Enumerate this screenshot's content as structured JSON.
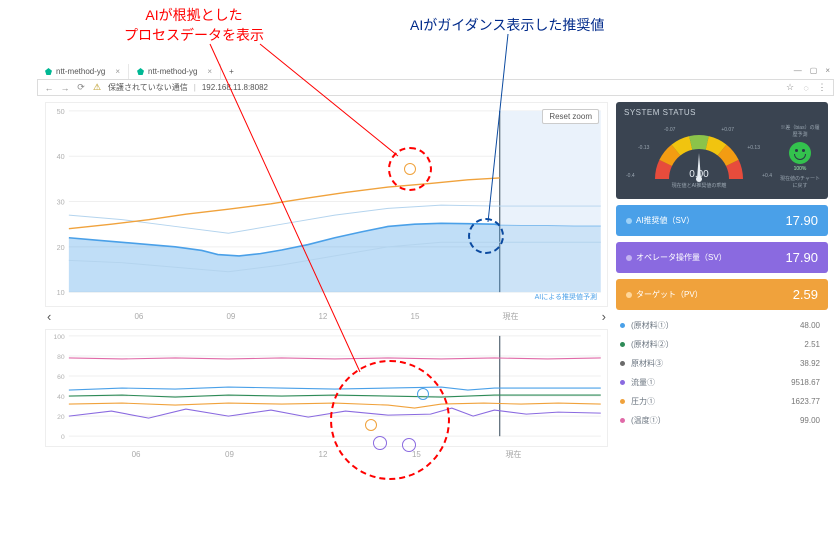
{
  "annotations": {
    "left_label_l1": "AIが根拠とした",
    "left_label_l2": "プロセスデータを表示",
    "right_label": "AIがガイダンス表示した推奨値",
    "colors": {
      "red": "#ff0000",
      "blue": "#002a8a"
    }
  },
  "browser": {
    "tabs": [
      {
        "title": "ntt-method-yg"
      },
      {
        "title": "ntt-method-yg"
      }
    ],
    "url_security": "保護されていない通信",
    "url": "192.168.11.8:8082"
  },
  "top_chart": {
    "type": "line+area",
    "reset_label": "Reset zoom",
    "y_ticks": [
      10,
      20,
      30,
      40,
      50
    ],
    "x_ticks": [
      "06",
      "09",
      "12",
      "15",
      "現在"
    ],
    "legend": "AIによる推奨値予測",
    "series": {
      "mv_area": {
        "color": "#4aa0e8",
        "fill_opacity": 0.35,
        "points": [
          [
            0,
            22
          ],
          [
            0.05,
            21.5
          ],
          [
            0.1,
            21
          ],
          [
            0.15,
            20.5
          ],
          [
            0.2,
            20
          ],
          [
            0.25,
            19.2
          ],
          [
            0.28,
            18.3
          ],
          [
            0.32,
            18.0
          ],
          [
            0.36,
            18.5
          ],
          [
            0.4,
            19.3
          ],
          [
            0.45,
            20.5
          ],
          [
            0.5,
            22.0
          ],
          [
            0.55,
            23.3
          ],
          [
            0.6,
            24.5
          ],
          [
            0.65,
            25.0
          ],
          [
            0.7,
            25.2
          ],
          [
            0.75,
            25.1
          ],
          [
            0.8,
            25.0
          ],
          [
            0.81,
            24.8
          ]
        ]
      },
      "mv_future_area": {
        "color": "#4aa0e8",
        "fill_opacity": 0.18,
        "points": [
          [
            0.81,
            24.8
          ],
          [
            0.85,
            24.7
          ],
          [
            0.9,
            24.7
          ],
          [
            0.95,
            24.6
          ],
          [
            1.0,
            24.6
          ]
        ]
      },
      "mv_ghost_upper": {
        "color": "#b4d4ee",
        "points": [
          [
            0,
            27
          ],
          [
            0.1,
            26
          ],
          [
            0.2,
            24.5
          ],
          [
            0.3,
            23
          ],
          [
            0.4,
            25
          ],
          [
            0.5,
            27
          ],
          [
            0.6,
            28.5
          ],
          [
            0.7,
            29.2
          ],
          [
            0.8,
            29.0
          ],
          [
            0.9,
            29.0
          ],
          [
            1.0,
            29.0
          ]
        ]
      },
      "mv_ghost_lower": {
        "color": "#b4d4ee",
        "points": [
          [
            0,
            17
          ],
          [
            0.1,
            16.5
          ],
          [
            0.2,
            15.5
          ],
          [
            0.3,
            14.5
          ],
          [
            0.4,
            16
          ],
          [
            0.5,
            18
          ],
          [
            0.6,
            20
          ],
          [
            0.7,
            21
          ],
          [
            0.8,
            21
          ],
          [
            0.9,
            21
          ],
          [
            1.0,
            21
          ]
        ]
      },
      "pv_orange": {
        "color": "#f0a23c",
        "points": [
          [
            0,
            24
          ],
          [
            0.08,
            25
          ],
          [
            0.15,
            26
          ],
          [
            0.22,
            27.2
          ],
          [
            0.3,
            28.3
          ],
          [
            0.38,
            29.5
          ],
          [
            0.45,
            30.8
          ],
          [
            0.52,
            32.0
          ],
          [
            0.6,
            33.2
          ],
          [
            0.68,
            34.0
          ],
          [
            0.75,
            34.8
          ],
          [
            0.81,
            35.2
          ]
        ]
      }
    },
    "now_x": 0.81,
    "ylim": [
      10,
      50
    ],
    "grid_color": "#efefef",
    "background_color": "#ffffff"
  },
  "bottom_chart": {
    "type": "multi-line",
    "y_ticks": [
      0,
      20,
      40,
      60,
      80,
      100
    ],
    "x_ticks": [
      "06",
      "09",
      "12",
      "15",
      "現在"
    ],
    "ylim": [
      0,
      100
    ],
    "now_x": 0.81,
    "series": {
      "raw1_blue": {
        "color": "#4aa0e8",
        "points": [
          [
            0,
            46
          ],
          [
            0.1,
            48
          ],
          [
            0.2,
            47
          ],
          [
            0.3,
            49
          ],
          [
            0.4,
            48
          ],
          [
            0.5,
            47
          ],
          [
            0.6,
            48
          ],
          [
            0.7,
            49
          ],
          [
            0.75,
            46
          ],
          [
            0.8,
            48
          ],
          [
            0.9,
            48
          ],
          [
            1,
            48
          ]
        ]
      },
      "raw2_green": {
        "color": "#2e8b57",
        "points": [
          [
            0,
            40
          ],
          [
            0.1,
            41
          ],
          [
            0.2,
            39
          ],
          [
            0.3,
            41
          ],
          [
            0.4,
            40
          ],
          [
            0.5,
            41
          ],
          [
            0.6,
            40
          ],
          [
            0.7,
            39
          ],
          [
            0.75,
            40
          ],
          [
            0.8,
            41
          ],
          [
            0.9,
            41
          ],
          [
            1,
            41
          ]
        ]
      },
      "raw3__": {
        "color": "#6a6a6a",
        "visible": false
      },
      "flow_purple": {
        "color": "#8a6ae0",
        "points": [
          [
            0,
            20
          ],
          [
            0.08,
            25
          ],
          [
            0.15,
            18
          ],
          [
            0.22,
            27
          ],
          [
            0.3,
            20
          ],
          [
            0.38,
            26
          ],
          [
            0.45,
            19
          ],
          [
            0.52,
            25
          ],
          [
            0.6,
            21
          ],
          [
            0.68,
            22
          ],
          [
            0.72,
            28
          ],
          [
            0.76,
            20
          ],
          [
            0.8,
            26
          ],
          [
            0.86,
            22
          ],
          [
            0.92,
            24
          ],
          [
            1,
            23
          ]
        ]
      },
      "press_orange": {
        "color": "#f0a23c",
        "points": [
          [
            0,
            32
          ],
          [
            0.1,
            33
          ],
          [
            0.2,
            31
          ],
          [
            0.3,
            33
          ],
          [
            0.4,
            32
          ],
          [
            0.5,
            33
          ],
          [
            0.6,
            31
          ],
          [
            0.65,
            28
          ],
          [
            0.7,
            32
          ],
          [
            0.78,
            33
          ],
          [
            0.85,
            32
          ],
          [
            0.92,
            33
          ],
          [
            1,
            32
          ]
        ]
      },
      "temp_pink": {
        "color": "#e06aa8",
        "points": [
          [
            0,
            78
          ],
          [
            0.1,
            77
          ],
          [
            0.2,
            78
          ],
          [
            0.3,
            77
          ],
          [
            0.4,
            78
          ],
          [
            0.5,
            77
          ],
          [
            0.6,
            78
          ],
          [
            0.7,
            77
          ],
          [
            0.8,
            78
          ],
          [
            0.9,
            77
          ],
          [
            1,
            78
          ]
        ]
      }
    }
  },
  "status": {
    "title": "SYSTEM STATUS",
    "gauge": {
      "value": "0.00",
      "sub": "現在値とAI推奨値の乖離",
      "scale": [
        "-0.4",
        "-0.13",
        "-0.07",
        "+0.07",
        "+0.13",
        "+0.4"
      ],
      "colors": [
        "#e74c3c",
        "#f39c12",
        "#f1c40f",
        "#8bc34a",
        "#f1c40f",
        "#f39c12",
        "#e74c3c"
      ]
    },
    "smile": {
      "header": "※差（bias）の履歴予測",
      "big": "100%",
      "sub": "現在値のチャートに戻す"
    }
  },
  "kpis": [
    {
      "key": "AI推奨値（SV）",
      "value": "17.90",
      "bg": "kv-blue",
      "dot": "#9ed1f7"
    },
    {
      "key": "オペレータ操作量（SV）",
      "value": "17.90",
      "bg": "kv-purple",
      "dot": "#c4b3f1"
    },
    {
      "key": "ターゲット（PV）",
      "value": "2.59",
      "bg": "kv-orange",
      "dot": "#ffd79b"
    }
  ],
  "process_vars": [
    {
      "label": "(原材料①）",
      "value": "48.00",
      "color": "#4aa0e8"
    },
    {
      "label": "(原材料②）",
      "value": "2.51",
      "color": "#2e8b57"
    },
    {
      "label": "原材料③",
      "value": "38.92",
      "color": "#6a6a6a"
    },
    {
      "label": "流量①",
      "value": "9518.67",
      "color": "#8a6ae0"
    },
    {
      "label": "圧力①",
      "value": "1623.77",
      "color": "#f0a23c"
    },
    {
      "label": "(温度①）",
      "value": "99.00",
      "color": "#e06aa8"
    }
  ]
}
